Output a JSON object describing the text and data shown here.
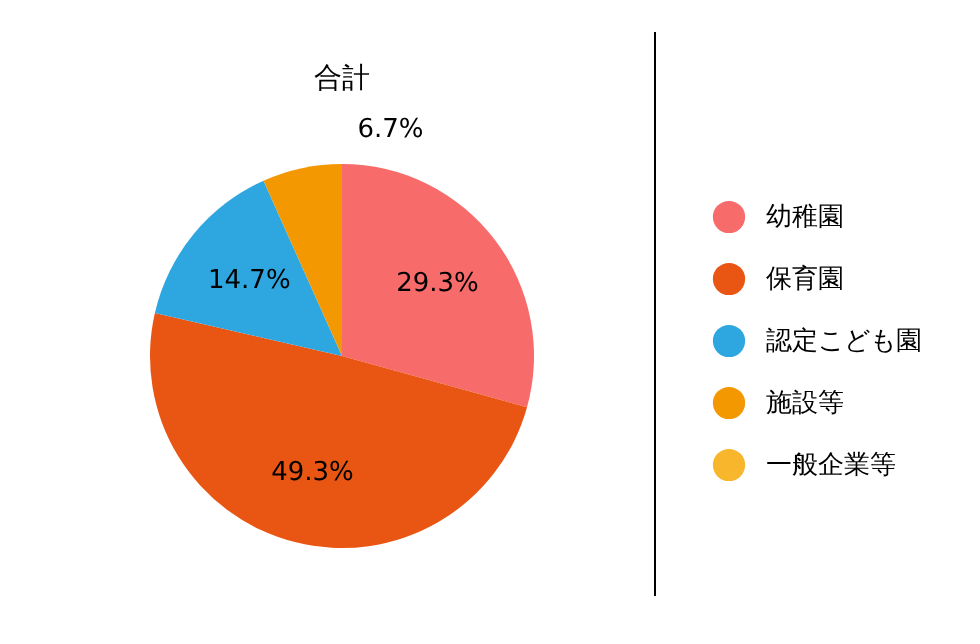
{
  "chart_data": {
    "type": "pie",
    "title": "合計",
    "categories": [
      "幼稚園",
      "保育園",
      "認定こども園",
      "施設等",
      "一般企業等"
    ],
    "values": [
      29.3,
      49.3,
      14.7,
      6.7,
      0
    ],
    "value_labels": [
      "29.3%",
      "49.3%",
      "14.7%",
      "6.7%",
      null
    ],
    "colors": [
      "#f76b6b",
      "#e95513",
      "#2ea7e0",
      "#f39800",
      "#f8b62d"
    ],
    "legend": "right"
  }
}
